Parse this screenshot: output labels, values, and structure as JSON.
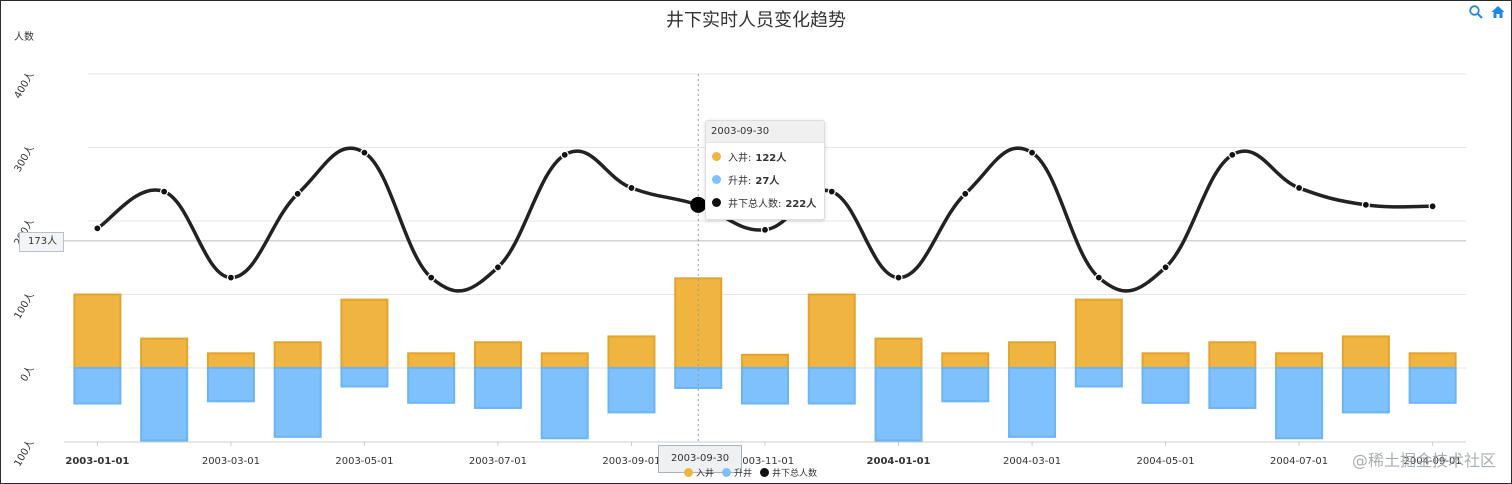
{
  "chart_data": {
    "type": "bar+line",
    "title": "井下实时人员变化趋势",
    "ylabel": "人数",
    "ylim": [
      -100,
      400
    ],
    "yticks": [
      "100人",
      "0人",
      "100人",
      "200人",
      "300人",
      "400人"
    ],
    "ytick_values": [
      -100,
      0,
      100,
      200,
      300,
      400
    ],
    "x": [
      "2003-01-01",
      "2003-02-01",
      "2003-03-01",
      "2003-04-01",
      "2003-05-01",
      "2003-06-01",
      "2003-07-01",
      "2003-08-01",
      "2003-09-01",
      "2003-09-30",
      "2003-11-01",
      "2003-12-01",
      "2004-01-01",
      "2004-02-01",
      "2004-03-01",
      "2004-04-01",
      "2004-05-01",
      "2004-06-01",
      "2004-07-01",
      "2004-08-01",
      "2004-09-01"
    ],
    "xtick_labels": [
      "2003-01-01",
      "2003-03-01",
      "2003-05-01",
      "2003-07-01",
      "2003-09-01",
      "2003-11-01",
      "2004-01-01",
      "2004-03-01",
      "2004-05-01",
      "2004-07-01",
      "2004-09-01"
    ],
    "xtick_bold": [
      "2003-01-01",
      "2004-01-01"
    ],
    "series": [
      {
        "name": "入井",
        "kind": "bar",
        "color": "#f0b540",
        "values": [
          100,
          40,
          20,
          35,
          93,
          20,
          35,
          20,
          43,
          122,
          18,
          100,
          40,
          20,
          35,
          93,
          20,
          35,
          20,
          43,
          20
        ]
      },
      {
        "name": "升井",
        "kind": "bar",
        "color": "#7ec1fc",
        "values": [
          -48,
          -98,
          -45,
          -93,
          -25,
          -47,
          -54,
          -95,
          -60,
          -27,
          -48,
          -48,
          -98,
          -45,
          -93,
          -25,
          -47,
          -54,
          -95,
          -60,
          -47
        ]
      },
      {
        "name": "井下总人数",
        "kind": "line",
        "color": "#222222",
        "values": [
          190,
          240,
          123,
          237,
          293,
          123,
          137,
          290,
          245,
          222,
          188,
          240,
          123,
          237,
          293,
          123,
          137,
          290,
          245,
          222,
          220
        ]
      }
    ],
    "highlight_index": 9,
    "legend_position": "bottom"
  },
  "tooltip": {
    "date": "2003-09-30",
    "rows": [
      {
        "label": "入井:",
        "value": "122人",
        "color": "#f0b540"
      },
      {
        "label": "升井:",
        "value": "27人",
        "color": "#7ec1fc"
      },
      {
        "label": "井下总人数:",
        "value": "222人",
        "color": "#111111"
      }
    ]
  },
  "y_pointer_label": "173人",
  "x_pointer_label": "2003-09-30",
  "toolbar": {
    "zoom_icon": "zoom-icon",
    "home_icon": "home-icon",
    "accent": "#1e88e5"
  },
  "watermark": "@稀土掘金技术社区"
}
